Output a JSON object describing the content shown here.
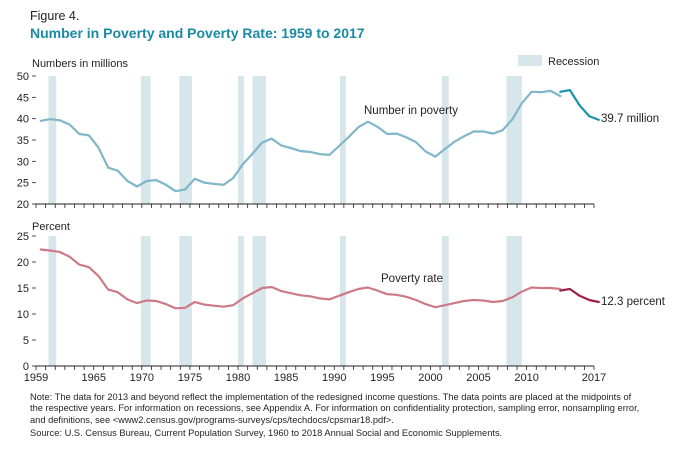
{
  "figure": {
    "label": "Figure 4.",
    "title": "Number in Poverty and Poverty Rate: 1959 to 2017",
    "note": "Note: The data for 2013 and beyond reflect the implementation of the redesigned income questions. The data points are placed at the midpoints of the respective years. For information on recessions, see Appendix A. For information on confidentiality protection, sampling error, nonsampling error, and definitions, see <www2.census.gov/programs-surveys/cps/techdocs/cpsmar18.pdf>.",
    "source": "Source: U.S. Census Bureau, Current Population Survey, 1960 to 2018 Annual Social and Economic Supplements."
  },
  "legend": {
    "recession_label": "Recession"
  },
  "colors": {
    "number_series": "#7fb6c8",
    "number_series_redesign": "#1b93a8",
    "rate_series": "#cc7a86",
    "rate_series_redesign": "#9c1f48",
    "recession": "#d6e6ea",
    "axis": "#231f20",
    "title": "#1b8aa5"
  },
  "chart_data": [
    {
      "type": "line",
      "ylabel": "Numbers in millions",
      "ylim": [
        20,
        50
      ],
      "yticks": [
        "20",
        "25",
        "30",
        "35",
        "40",
        "45",
        "50"
      ],
      "series": [
        {
          "name": "Number in poverty",
          "end_label": "39.7 million",
          "x": [
            1959,
            1960,
            1961,
            1962,
            1963,
            1964,
            1965,
            1966,
            1967,
            1968,
            1969,
            1970,
            1971,
            1972,
            1973,
            1974,
            1975,
            1976,
            1977,
            1978,
            1979,
            1980,
            1981,
            1982,
            1983,
            1984,
            1985,
            1986,
            1987,
            1988,
            1989,
            1990,
            1991,
            1992,
            1993,
            1994,
            1995,
            1996,
            1997,
            1998,
            1999,
            2000,
            2001,
            2002,
            2003,
            2004,
            2005,
            2006,
            2007,
            2008,
            2009,
            2010,
            2011,
            2012,
            2013
          ],
          "values": [
            39.5,
            39.9,
            39.6,
            38.6,
            36.4,
            36.1,
            33.2,
            28.5,
            27.8,
            25.4,
            24.1,
            25.4,
            25.6,
            24.5,
            23.0,
            23.4,
            25.9,
            25.0,
            24.7,
            24.5,
            26.1,
            29.3,
            31.8,
            34.4,
            35.3,
            33.7,
            33.1,
            32.4,
            32.2,
            31.7,
            31.5,
            33.6,
            35.7,
            38.0,
            39.3,
            38.1,
            36.4,
            36.5,
            35.6,
            34.5,
            32.3,
            31.1,
            32.9,
            34.6,
            35.9,
            37.0,
            37.0,
            36.5,
            37.3,
            39.8,
            43.6,
            46.3,
            46.2,
            46.5,
            45.3
          ]
        },
        {
          "name": "",
          "x": [
            2013,
            2014,
            2015,
            2016,
            2017
          ],
          "values": [
            46.3,
            46.7,
            43.1,
            40.6,
            39.7
          ]
        }
      ]
    },
    {
      "type": "line",
      "ylabel": "Percent",
      "ylim": [
        0,
        25
      ],
      "yticks": [
        "0",
        "5",
        "10",
        "15",
        "20",
        "25"
      ],
      "xlim": [
        1959,
        2017
      ],
      "xticks": [
        "1959",
        "1965",
        "1970",
        "1975",
        "1980",
        "1985",
        "1990",
        "1995",
        "2000",
        "2005",
        "2010",
        "2017"
      ],
      "series": [
        {
          "name": "Poverty rate",
          "end_label": "12.3 percent",
          "x": [
            1959,
            1960,
            1961,
            1962,
            1963,
            1964,
            1965,
            1966,
            1967,
            1968,
            1969,
            1970,
            1971,
            1972,
            1973,
            1974,
            1975,
            1976,
            1977,
            1978,
            1979,
            1980,
            1981,
            1982,
            1983,
            1984,
            1985,
            1986,
            1987,
            1988,
            1989,
            1990,
            1991,
            1992,
            1993,
            1994,
            1995,
            1996,
            1997,
            1998,
            1999,
            2000,
            2001,
            2002,
            2003,
            2004,
            2005,
            2006,
            2007,
            2008,
            2009,
            2010,
            2011,
            2012,
            2013
          ],
          "values": [
            22.4,
            22.2,
            21.9,
            21.0,
            19.5,
            19.0,
            17.3,
            14.7,
            14.2,
            12.8,
            12.1,
            12.6,
            12.5,
            11.9,
            11.1,
            11.2,
            12.3,
            11.8,
            11.6,
            11.4,
            11.7,
            13.0,
            14.0,
            15.0,
            15.2,
            14.4,
            14.0,
            13.6,
            13.4,
            13.0,
            12.8,
            13.5,
            14.2,
            14.8,
            15.1,
            14.5,
            13.8,
            13.7,
            13.3,
            12.7,
            11.9,
            11.3,
            11.7,
            12.1,
            12.5,
            12.7,
            12.6,
            12.3,
            12.5,
            13.2,
            14.3,
            15.1,
            15.0,
            15.0,
            14.8
          ]
        },
        {
          "name": "",
          "x": [
            2013,
            2014,
            2015,
            2016,
            2017
          ],
          "values": [
            14.5,
            14.8,
            13.5,
            12.7,
            12.3
          ]
        }
      ]
    }
  ],
  "recessions": [
    [
      1960.3,
      1961.1
    ],
    [
      1969.9,
      1970.9
    ],
    [
      1973.9,
      1975.2
    ],
    [
      1980.0,
      1980.6
    ],
    [
      1981.5,
      1982.9
    ],
    [
      1990.6,
      1991.2
    ],
    [
      2001.2,
      2001.9
    ],
    [
      2007.9,
      2009.5
    ]
  ]
}
